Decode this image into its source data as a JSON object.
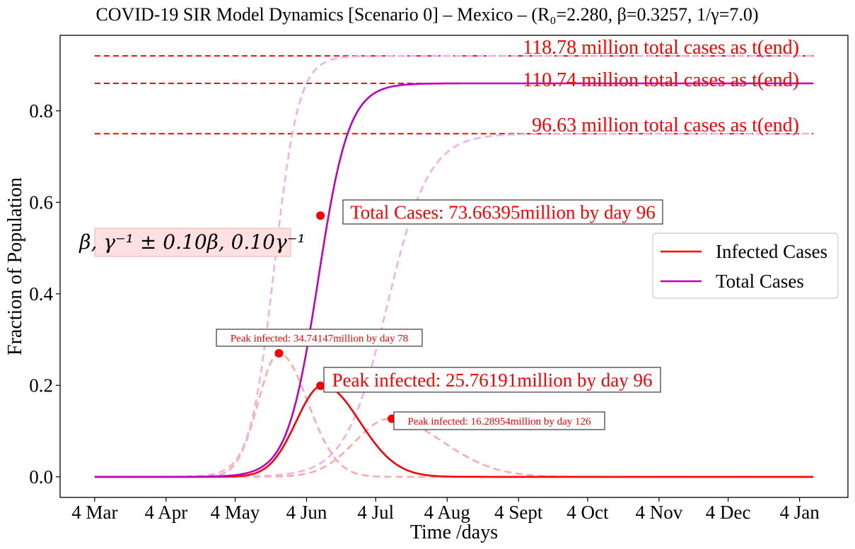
{
  "title": "COVID-19 SIR Model Dynamics [Scenario 0] – Mexico – (R₀=2.280, β=0.3257, 1/γ=7.0)",
  "chart_data": {
    "type": "line",
    "xlabel": "Time /days",
    "ylabel": "Fraction of Population",
    "x_ticks": [
      "4 Mar",
      "4 Apr",
      "4 May",
      "4 Jun",
      "4 Jul",
      "4 Aug",
      "4 Sept",
      "4 Oct",
      "4 Nov",
      "4 Dec",
      "4 Jan"
    ],
    "x_tick_days": [
      0,
      31,
      61,
      92,
      122,
      153,
      184,
      214,
      245,
      275,
      306
    ],
    "xlim": [
      -15,
      327
    ],
    "y_ticks": [
      "0.0",
      "0.2",
      "0.4",
      "0.6",
      "0.8"
    ],
    "ylim": [
      -0.045,
      0.965
    ],
    "x_end_day": 312,
    "legend_position": "center-right",
    "series": [
      {
        "name": "Infected Cases",
        "color": "#ff0000",
        "style": "solid",
        "kind": "infected",
        "peak_day": 99,
        "peak": 0.2,
        "rise_width": 11.5,
        "fall_width": 16
      },
      {
        "name": "Total Cases",
        "color": "#bf00bf",
        "style": "solid",
        "kind": "total",
        "final": 0.86,
        "midpoint": 97,
        "k": 0.15
      }
    ],
    "scenario_series": [
      {
        "color": "#ffaaaa",
        "style": "dashed",
        "kind": "infected",
        "peak_day": 80,
        "peak": 0.27,
        "rise_width": 9,
        "fall_width": 12.5
      },
      {
        "color": "#ffaaaa",
        "style": "dashed",
        "kind": "infected",
        "peak_day": 128,
        "peak": 0.127,
        "rise_width": 15,
        "fall_width": 23
      },
      {
        "color": "#f0b0e8",
        "style": "dashed",
        "kind": "total",
        "final": 0.92,
        "midpoint": 78,
        "k": 0.19
      },
      {
        "color": "#f0b0e8",
        "style": "dashed",
        "kind": "total",
        "final": 0.75,
        "midpoint": 127,
        "k": 0.11
      }
    ],
    "hlines": [
      {
        "y": 0.92,
        "label": "118.78 million total cases as t(end)"
      },
      {
        "y": 0.86,
        "label": "110.74 million total cases as t(end)"
      },
      {
        "y": 0.75,
        "label": "96.63 million total cases as t(end)"
      }
    ],
    "markers": [
      {
        "x": 98,
        "y": 0.571,
        "label": "Total Cases: 73.66395million by day 96",
        "size": "large"
      },
      {
        "x": 80,
        "y": 0.27,
        "label": "Peak infected: 34.74147million by day 78",
        "size": "small"
      },
      {
        "x": 98,
        "y": 0.199,
        "label": "Peak infected: 25.76191million by day 96",
        "size": "large"
      },
      {
        "x": 129,
        "y": 0.127,
        "label": "Peak infected: 16.28954million by day 126",
        "size": "small"
      }
    ],
    "param_box": "β, γ⁻¹ ± 0.10β, 0.10γ⁻¹"
  },
  "colors": {
    "infected": "#ff0000",
    "total": "#bf00bf",
    "hline": "#ff0000",
    "param_box_fill": "#ffe0e0"
  }
}
